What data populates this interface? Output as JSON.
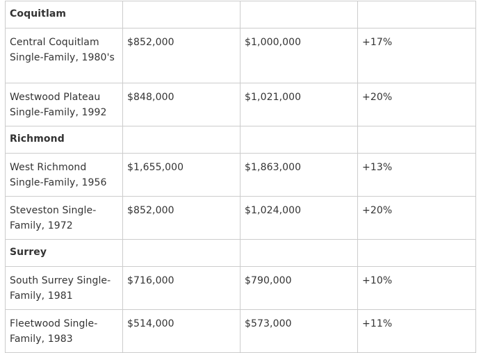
{
  "table": {
    "sections": [
      {
        "region": "Coquitlam",
        "rows": [
          {
            "property": "Central Coquitlam Single-Family, 1980's",
            "price1": "$852,000",
            "price2": "$1,000,000",
            "change": "+17%"
          },
          {
            "property": "Westwood Plateau Single-Family, 1992",
            "price1": "$848,000",
            "price2": "$1,021,000",
            "change": "+20%"
          }
        ]
      },
      {
        "region": "Richmond",
        "rows": [
          {
            "property": "West Richmond Single-Family, 1956",
            "price1": "$1,655,000",
            "price2": "$1,863,000",
            "change": "+13%"
          },
          {
            "property": "Steveston Single-Family, 1972",
            "price1": "$852,000",
            "price2": "$1,024,000",
            "change": "+20%"
          }
        ]
      },
      {
        "region": "Surrey",
        "rows": [
          {
            "property": "South Surrey Single-Family, 1981",
            "price1": "$716,000",
            "price2": "$790,000",
            "change": "+10%"
          },
          {
            "property": "Fleetwood Single-Family, 1983",
            "price1": "$514,000",
            "price2": "$573,000",
            "change": "+11%"
          }
        ]
      }
    ]
  }
}
